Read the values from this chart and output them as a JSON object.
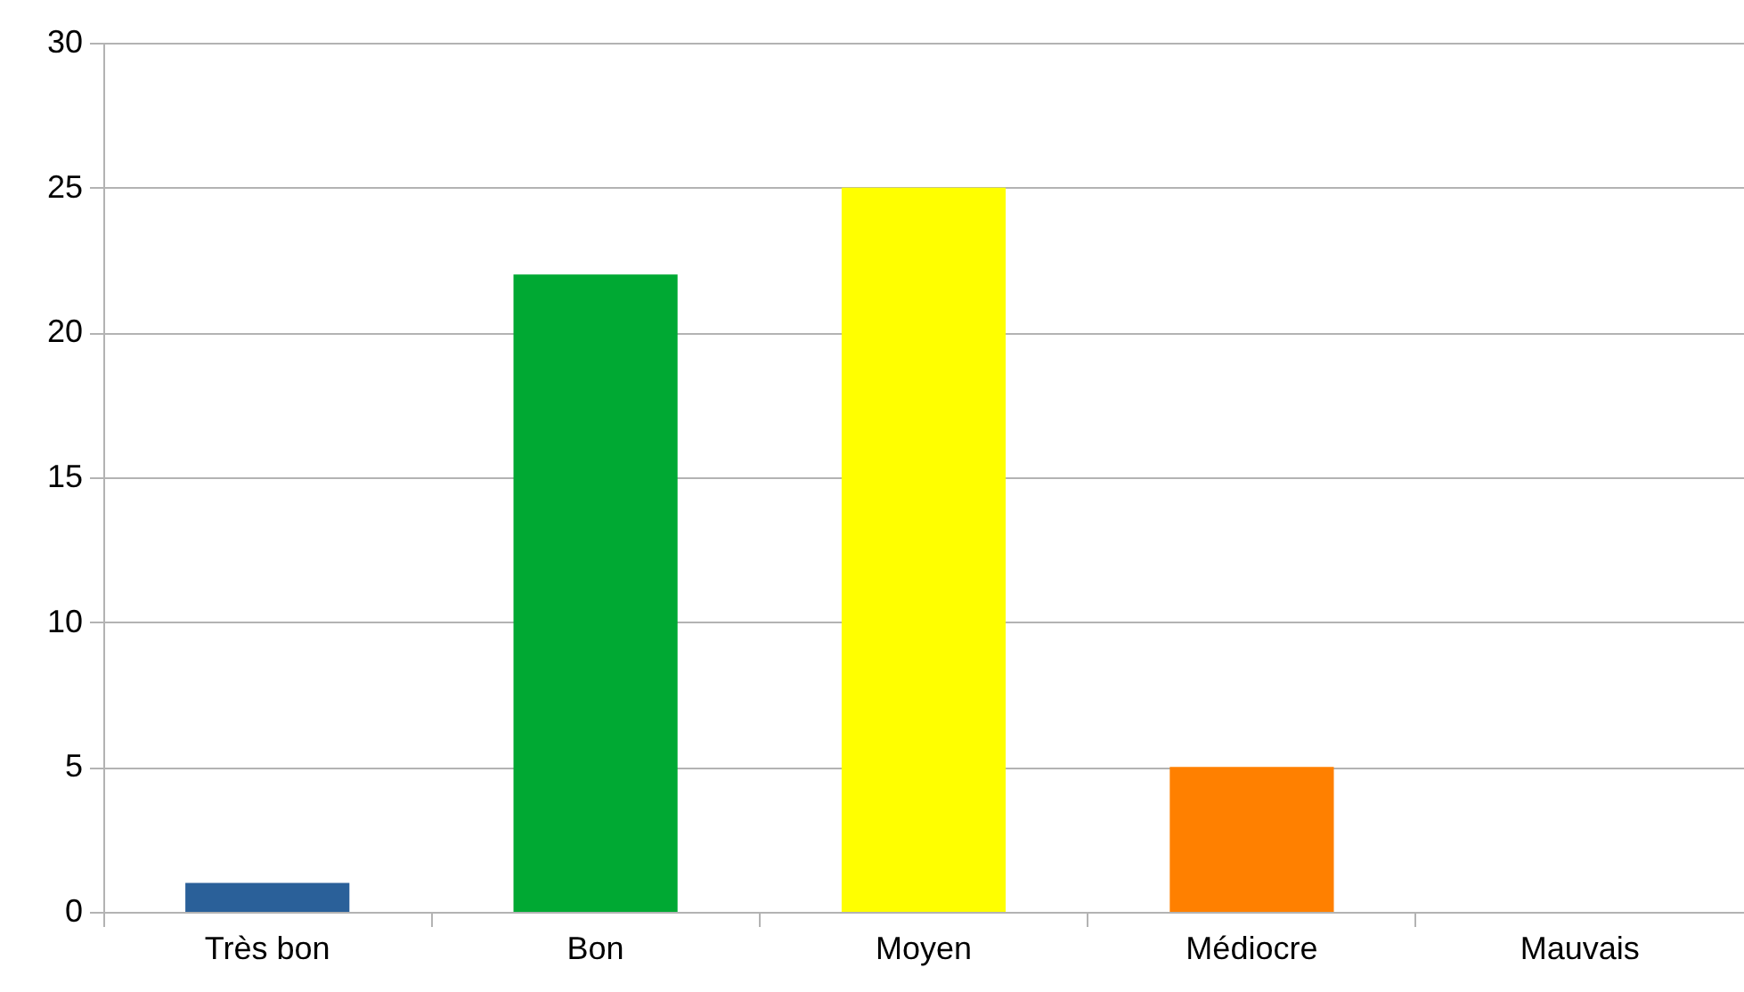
{
  "chart_data": {
    "type": "bar",
    "categories": [
      "Très bon",
      "Bon",
      "Moyen",
      "Médiocre",
      "Mauvais"
    ],
    "values": [
      1,
      22,
      25,
      5,
      0
    ],
    "colors": [
      "#2a6099",
      "#00a933",
      "#ffff00",
      "#ff8000",
      "#ff0000"
    ],
    "ylim": [
      0,
      30
    ],
    "yticks": [
      0,
      5,
      10,
      15,
      20,
      25,
      30
    ],
    "grid": "y"
  }
}
